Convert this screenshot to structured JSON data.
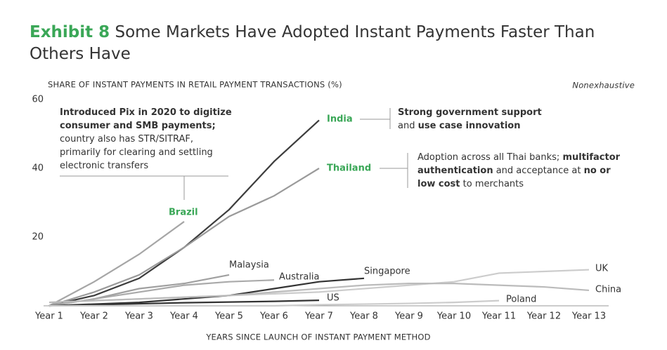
{
  "chart_data": {
    "type": "line",
    "exhibit": "Exhibit 8",
    "title": "Some Markets Have Adopted Instant Payments Faster Than Others Have",
    "ylabel": "SHARE OF INSTANT PAYMENTS IN RETAIL PAYMENT TRANSACTIONS (%)",
    "xlabel": "YEARS SINCE LAUNCH OF INSTANT PAYMENT METHOD",
    "note": "Nonexhaustive",
    "categories": [
      "Year 1",
      "Year 2",
      "Year 3",
      "Year 4",
      "Year 5",
      "Year 6",
      "Year 7",
      "Year 8",
      "Year 9",
      "Year 10",
      "Year 11",
      "Year 12",
      "Year 13"
    ],
    "ylim": [
      0,
      60
    ],
    "yticks": [
      20,
      40,
      60
    ],
    "series": [
      {
        "name": "India",
        "color": "#3d3d3d",
        "label_color": "#3aa757",
        "values": [
          0,
          3,
          8,
          17,
          28,
          42,
          54,
          null,
          null,
          null,
          null,
          null,
          null
        ]
      },
      {
        "name": "Thailand",
        "color": "#9a9a9a",
        "label_color": "#3aa757",
        "values": [
          0,
          4,
          9,
          17,
          26,
          32,
          40,
          null,
          null,
          null,
          null,
          null,
          null
        ]
      },
      {
        "name": "Brazil",
        "color": "#a6a6a6",
        "label_color": "#3aa757",
        "values": [
          0,
          7,
          15,
          24.5,
          null,
          null,
          null,
          null,
          null,
          null,
          null,
          null,
          null
        ]
      },
      {
        "name": "Malaysia",
        "color": "#a0a0a0",
        "label_color": "#333333",
        "values": [
          0,
          2,
          5,
          6.5,
          9,
          null,
          null,
          null,
          null,
          null,
          null,
          null,
          null
        ]
      },
      {
        "name": "Australia",
        "color": "#aaaaaa",
        "label_color": "#333333",
        "values": [
          0,
          2,
          4,
          6,
          7,
          7.5,
          null,
          null,
          null,
          null,
          null,
          null,
          null
        ]
      },
      {
        "name": "Singapore",
        "color": "#333333",
        "label_color": "#333333",
        "values": [
          0,
          0.5,
          1,
          2,
          3,
          5,
          7,
          8,
          null,
          null,
          null,
          null,
          null
        ]
      },
      {
        "name": "US",
        "color": "#333333",
        "label_color": "#333333",
        "values": [
          0,
          0.3,
          0.6,
          0.9,
          1.1,
          1.3,
          1.6,
          null,
          null,
          null,
          null,
          null,
          null
        ]
      },
      {
        "name": "UK",
        "color": "#cccccc",
        "label_color": "#333333",
        "values": [
          1,
          1.5,
          2,
          2.5,
          3,
          3.5,
          4,
          5,
          6,
          7,
          9.5,
          10,
          10.5
        ]
      },
      {
        "name": "China",
        "color": "#bbbbbb",
        "label_color": "#333333",
        "values": [
          1,
          1.5,
          2,
          2.5,
          3,
          4,
          5,
          6,
          6.5,
          6.5,
          6,
          5.5,
          4.5
        ]
      },
      {
        "name": "Poland",
        "color": "#cccccc",
        "label_color": "#333333",
        "values": [
          0,
          0,
          0,
          0,
          0,
          0,
          0.3,
          0.5,
          0.7,
          1,
          1.5,
          null,
          null
        ]
      }
    ],
    "annotations": [
      {
        "lines": [
          [
            {
              "text": "Introduced Pix in 2020 to digitize",
              "bold": true
            }
          ],
          [
            {
              "text": "consumer and SMB payments;",
              "bold": true
            }
          ],
          [
            {
              "text": "country also has STR/SITRAF,",
              "bold": false
            }
          ],
          [
            {
              "text": "primarily for clearing and settling",
              "bold": false
            }
          ],
          [
            {
              "text": "electronic transfers",
              "bold": false
            }
          ]
        ]
      },
      {
        "lines": [
          [
            {
              "text": "Strong government support",
              "bold": true
            }
          ],
          [
            {
              "text": "and ",
              "bold": false
            },
            {
              "text": "use case innovation",
              "bold": true
            }
          ]
        ]
      },
      {
        "lines": [
          [
            {
              "text": "Adoption across all Thai banks; ",
              "bold": false
            },
            {
              "text": "multifactor",
              "bold": true
            }
          ],
          [
            {
              "text": "authentication",
              "bold": true
            },
            {
              "text": " and acceptance at ",
              "bold": false
            },
            {
              "text": "no or",
              "bold": true
            }
          ],
          [
            {
              "text": "low cost",
              "bold": true
            },
            {
              "text": " to merchants",
              "bold": false
            }
          ]
        ]
      }
    ]
  }
}
